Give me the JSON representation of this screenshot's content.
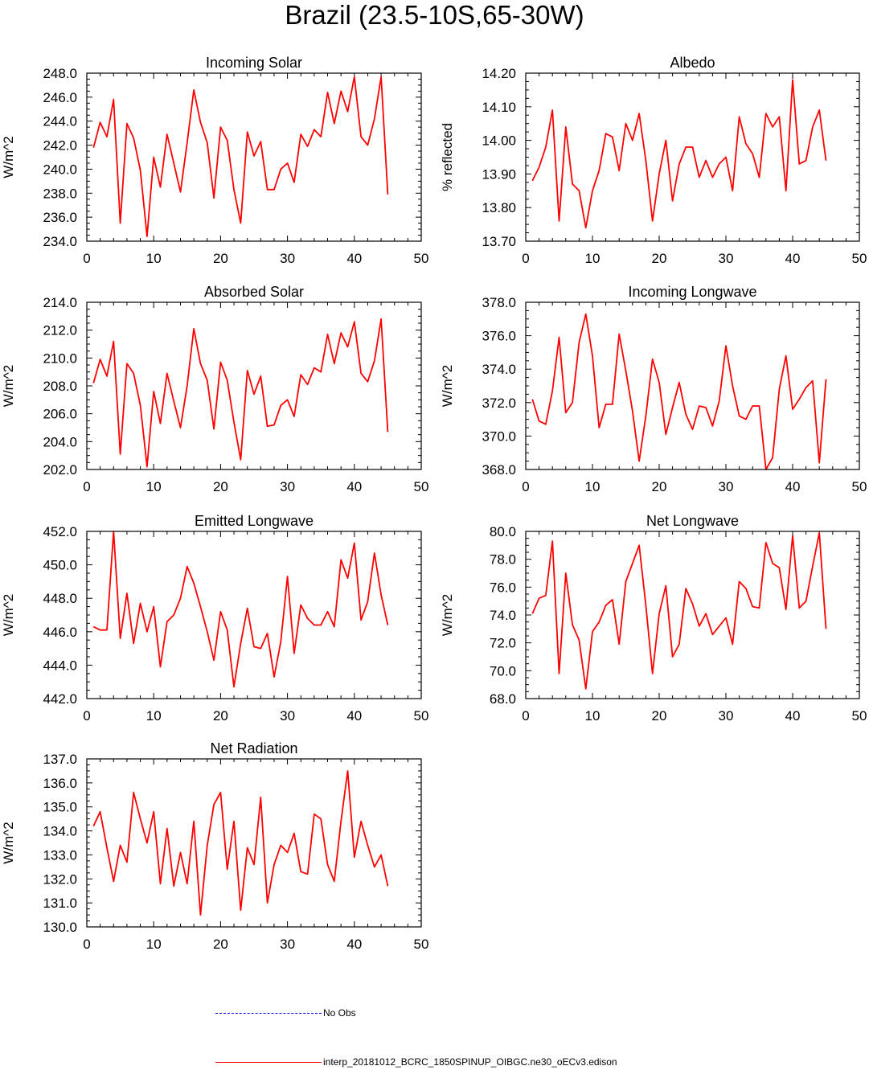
{
  "title": "Brazil (23.5-10S,65-30W)",
  "colors": {
    "model": "#ff0000",
    "obs": "#0000ff",
    "axis": "#000000"
  },
  "legend": {
    "obs_label": "No Obs",
    "model_label": "interp_20181012_BCRC_1850SPINUP_OIBGC.ne30_oECv3.edison"
  },
  "chart_data": [
    {
      "type": "line",
      "title": "Incoming Solar",
      "xlabel": "",
      "ylabel": "W/m^2",
      "xlim": [
        0,
        50
      ],
      "ylim": [
        234,
        248
      ],
      "xticks": [
        0,
        10,
        20,
        30,
        40,
        50
      ],
      "xtick_labels": [
        "0",
        "10",
        "20",
        "30",
        "40",
        "50"
      ],
      "yticks": [
        234,
        236,
        238,
        240,
        242,
        244,
        246,
        248
      ],
      "ytick_labels": [
        "234.0",
        "236.0",
        "238.0",
        "240.0",
        "242.0",
        "244.0",
        "246.0",
        "248.0"
      ],
      "series": [
        {
          "name": "interp_20181012_BCRC_1850SPINUP_OIBGC.ne30_oECv3.edison",
          "x": [
            1,
            2,
            3,
            4,
            5,
            6,
            7,
            8,
            9,
            10,
            11,
            12,
            13,
            14,
            15,
            16,
            17,
            18,
            19,
            20,
            21,
            22,
            23,
            24,
            25,
            26,
            27,
            28,
            29,
            30,
            31,
            32,
            33,
            34,
            35,
            36,
            37,
            38,
            39,
            40,
            41,
            42,
            43,
            44,
            45
          ],
          "values": [
            241.8,
            243.9,
            242.7,
            245.8,
            235.5,
            243.8,
            242.6,
            239.9,
            234.4,
            241.0,
            238.5,
            242.9,
            240.5,
            238.1,
            242.2,
            246.6,
            243.9,
            242.2,
            237.6,
            243.5,
            242.4,
            238.3,
            235.5,
            243.1,
            241.1,
            242.3,
            238.3,
            238.3,
            240.0,
            240.5,
            238.9,
            242.9,
            241.9,
            243.3,
            242.7,
            246.4,
            243.8,
            246.5,
            244.8,
            247.7,
            242.7,
            242.0,
            244.2,
            247.7,
            237.9
          ]
        }
      ]
    },
    {
      "type": "line",
      "title": "Albedo",
      "xlabel": "",
      "ylabel": "% reflected",
      "xlim": [
        0,
        50
      ],
      "ylim": [
        13.7,
        14.2
      ],
      "xticks": [
        0,
        10,
        20,
        30,
        40,
        50
      ],
      "xtick_labels": [
        "0",
        "10",
        "20",
        "30",
        "40",
        "50"
      ],
      "yticks": [
        13.7,
        13.8,
        13.9,
        14.0,
        14.1,
        14.2
      ],
      "ytick_labels": [
        "13.70",
        "13.80",
        "13.90",
        "14.00",
        "14.10",
        "14.20"
      ],
      "series": [
        {
          "name": "interp_20181012_BCRC_1850SPINUP_OIBGC.ne30_oECv3.edison",
          "x": [
            1,
            2,
            3,
            4,
            5,
            6,
            7,
            8,
            9,
            10,
            11,
            12,
            13,
            14,
            15,
            16,
            17,
            18,
            19,
            20,
            21,
            22,
            23,
            24,
            25,
            26,
            27,
            28,
            29,
            30,
            31,
            32,
            33,
            34,
            35,
            36,
            37,
            38,
            39,
            40,
            41,
            42,
            43,
            44,
            45
          ],
          "values": [
            13.88,
            13.92,
            13.98,
            14.09,
            13.76,
            14.04,
            13.87,
            13.85,
            13.74,
            13.85,
            13.91,
            14.02,
            14.01,
            13.91,
            14.05,
            14.0,
            14.08,
            13.94,
            13.76,
            13.9,
            14.0,
            13.82,
            13.93,
            13.98,
            13.98,
            13.89,
            13.94,
            13.89,
            13.93,
            13.95,
            13.85,
            14.07,
            13.99,
            13.96,
            13.89,
            14.08,
            14.04,
            14.07,
            13.85,
            14.18,
            13.93,
            13.94,
            14.04,
            14.09,
            13.94
          ]
        }
      ]
    },
    {
      "type": "line",
      "title": "Absorbed Solar",
      "xlabel": "",
      "ylabel": "W/m^2",
      "xlim": [
        0,
        50
      ],
      "ylim": [
        202,
        214
      ],
      "xticks": [
        0,
        10,
        20,
        30,
        40,
        50
      ],
      "xtick_labels": [
        "0",
        "10",
        "20",
        "30",
        "40",
        "50"
      ],
      "yticks": [
        202,
        204,
        206,
        208,
        210,
        212,
        214
      ],
      "ytick_labels": [
        "202.0",
        "204.0",
        "206.0",
        "208.0",
        "210.0",
        "212.0",
        "214.0"
      ],
      "series": [
        {
          "name": "interp_20181012_BCRC_1850SPINUP_OIBGC.ne30_oECv3.edison",
          "x": [
            1,
            2,
            3,
            4,
            5,
            6,
            7,
            8,
            9,
            10,
            11,
            12,
            13,
            14,
            15,
            16,
            17,
            18,
            19,
            20,
            21,
            22,
            23,
            24,
            25,
            26,
            27,
            28,
            29,
            30,
            31,
            32,
            33,
            34,
            35,
            36,
            37,
            38,
            39,
            40,
            41,
            42,
            43,
            44,
            45
          ],
          "values": [
            208.2,
            209.9,
            208.7,
            211.2,
            203.1,
            209.6,
            208.9,
            206.6,
            202.2,
            207.6,
            205.3,
            208.9,
            206.9,
            205.0,
            208.0,
            212.1,
            209.6,
            208.4,
            204.9,
            209.7,
            208.4,
            205.4,
            202.7,
            209.1,
            207.4,
            208.7,
            205.1,
            205.2,
            206.6,
            207.0,
            205.8,
            208.8,
            208.1,
            209.3,
            209.0,
            211.7,
            209.6,
            211.8,
            210.8,
            212.6,
            208.9,
            208.3,
            209.8,
            212.8,
            204.7
          ]
        }
      ]
    },
    {
      "type": "line",
      "title": "Incoming Longwave",
      "xlabel": "",
      "ylabel": "W/m^2",
      "xlim": [
        0,
        50
      ],
      "ylim": [
        368,
        378
      ],
      "xticks": [
        0,
        10,
        20,
        30,
        40,
        50
      ],
      "xtick_labels": [
        "0",
        "10",
        "20",
        "30",
        "40",
        "50"
      ],
      "yticks": [
        368,
        370,
        372,
        374,
        376,
        378
      ],
      "ytick_labels": [
        "368.0",
        "370.0",
        "372.0",
        "374.0",
        "376.0",
        "378.0"
      ],
      "series": [
        {
          "name": "interp_20181012_BCRC_1850SPINUP_OIBGC.ne30_oECv3.edison",
          "x": [
            1,
            2,
            3,
            4,
            5,
            6,
            7,
            8,
            9,
            10,
            11,
            12,
            13,
            14,
            15,
            16,
            17,
            18,
            19,
            20,
            21,
            22,
            23,
            24,
            25,
            26,
            27,
            28,
            29,
            30,
            31,
            32,
            33,
            34,
            35,
            36,
            37,
            38,
            39,
            40,
            41,
            42,
            43,
            44,
            45
          ],
          "values": [
            372.2,
            370.9,
            370.7,
            372.7,
            375.9,
            371.4,
            372.0,
            375.6,
            377.3,
            374.8,
            370.5,
            371.9,
            371.9,
            376.1,
            373.9,
            371.5,
            368.5,
            371.2,
            374.6,
            373.2,
            370.1,
            371.7,
            373.2,
            371.3,
            370.4,
            371.8,
            371.7,
            370.6,
            372.1,
            375.4,
            373.0,
            371.2,
            371.0,
            371.8,
            371.8,
            368.0,
            368.7,
            372.8,
            374.8,
            371.6,
            372.2,
            372.9,
            373.3,
            368.4,
            373.4
          ]
        }
      ]
    },
    {
      "type": "line",
      "title": "Emitted Longwave",
      "xlabel": "",
      "ylabel": "W/m^2",
      "xlim": [
        0,
        50
      ],
      "ylim": [
        442,
        452
      ],
      "xticks": [
        0,
        10,
        20,
        30,
        40,
        50
      ],
      "xtick_labels": [
        "0",
        "10",
        "20",
        "30",
        "40",
        "50"
      ],
      "yticks": [
        442,
        444,
        446,
        448,
        450,
        452
      ],
      "ytick_labels": [
        "442.0",
        "444.0",
        "446.0",
        "448.0",
        "450.0",
        "452.0"
      ],
      "series": [
        {
          "name": "interp_20181012_BCRC_1850SPINUP_OIBGC.ne30_oECv3.edison",
          "x": [
            1,
            2,
            3,
            4,
            5,
            6,
            7,
            8,
            9,
            10,
            11,
            12,
            13,
            14,
            15,
            16,
            17,
            18,
            19,
            20,
            21,
            22,
            23,
            24,
            25,
            26,
            27,
            28,
            29,
            30,
            31,
            32,
            33,
            34,
            35,
            36,
            37,
            38,
            39,
            40,
            41,
            42,
            43,
            44,
            45
          ],
          "values": [
            446.3,
            446.1,
            446.1,
            452.0,
            445.6,
            448.3,
            445.3,
            447.7,
            446.0,
            447.5,
            443.9,
            446.6,
            447.0,
            448.0,
            449.9,
            448.9,
            447.5,
            446.0,
            444.3,
            447.2,
            446.1,
            442.7,
            445.3,
            447.4,
            445.1,
            445.0,
            445.9,
            443.3,
            445.4,
            449.3,
            444.7,
            447.6,
            446.8,
            446.4,
            446.4,
            447.2,
            446.3,
            450.3,
            449.2,
            451.3,
            446.7,
            447.8,
            450.7,
            448.2,
            446.4
          ]
        }
      ]
    },
    {
      "type": "line",
      "title": "Net Longwave",
      "xlabel": "",
      "ylabel": "W/m^2",
      "xlim": [
        0,
        50
      ],
      "ylim": [
        68,
        80
      ],
      "xticks": [
        0,
        10,
        20,
        30,
        40,
        50
      ],
      "xtick_labels": [
        "0",
        "10",
        "20",
        "30",
        "40",
        "50"
      ],
      "yticks": [
        68,
        70,
        72,
        74,
        76,
        78,
        80
      ],
      "ytick_labels": [
        "68.0",
        "70.0",
        "72.0",
        "74.0",
        "76.0",
        "78.0",
        "80.0"
      ],
      "series": [
        {
          "name": "interp_20181012_BCRC_1850SPINUP_OIBGC.ne30_oECv3.edison",
          "x": [
            1,
            2,
            3,
            4,
            5,
            6,
            7,
            8,
            9,
            10,
            11,
            12,
            13,
            14,
            15,
            16,
            17,
            18,
            19,
            20,
            21,
            22,
            23,
            24,
            25,
            26,
            27,
            28,
            29,
            30,
            31,
            32,
            33,
            34,
            35,
            36,
            37,
            38,
            39,
            40,
            41,
            42,
            43,
            44,
            45
          ],
          "values": [
            74.1,
            75.2,
            75.4,
            79.3,
            69.8,
            77.0,
            73.3,
            72.2,
            68.7,
            72.8,
            73.5,
            74.7,
            75.1,
            71.9,
            76.4,
            77.7,
            79.0,
            74.7,
            69.8,
            74.1,
            76.1,
            71.0,
            71.9,
            75.9,
            74.8,
            73.2,
            74.1,
            72.6,
            73.2,
            73.8,
            71.9,
            76.4,
            75.9,
            74.6,
            74.5,
            79.2,
            77.7,
            77.4,
            74.4,
            79.7,
            74.5,
            75.0,
            77.5,
            79.9,
            73.0
          ]
        }
      ]
    },
    {
      "type": "line",
      "title": "Net Radiation",
      "xlabel": "",
      "ylabel": "W/m^2",
      "xlim": [
        0,
        50
      ],
      "ylim": [
        130,
        137
      ],
      "xticks": [
        0,
        10,
        20,
        30,
        40,
        50
      ],
      "xtick_labels": [
        "0",
        "10",
        "20",
        "30",
        "40",
        "50"
      ],
      "yticks": [
        130,
        131,
        132,
        133,
        134,
        135,
        136,
        137
      ],
      "ytick_labels": [
        "130.0",
        "131.0",
        "132.0",
        "133.0",
        "134.0",
        "135.0",
        "136.0",
        "137.0"
      ],
      "series": [
        {
          "name": "interp_20181012_BCRC_1850SPINUP_OIBGC.ne30_oECv3.edison",
          "x": [
            1,
            2,
            3,
            4,
            5,
            6,
            7,
            8,
            9,
            10,
            11,
            12,
            13,
            14,
            15,
            16,
            17,
            18,
            19,
            20,
            21,
            22,
            23,
            24,
            25,
            26,
            27,
            28,
            29,
            30,
            31,
            32,
            33,
            34,
            35,
            36,
            37,
            38,
            39,
            40,
            41,
            42,
            43,
            44,
            45
          ],
          "values": [
            134.2,
            134.8,
            133.3,
            131.9,
            133.4,
            132.7,
            135.6,
            134.5,
            133.5,
            134.8,
            131.8,
            134.1,
            131.7,
            133.1,
            131.8,
            134.4,
            130.5,
            133.4,
            135.1,
            135.6,
            132.4,
            134.4,
            130.7,
            133.3,
            132.6,
            135.4,
            131.0,
            132.6,
            133.4,
            133.1,
            133.9,
            132.3,
            132.2,
            134.7,
            134.5,
            132.6,
            131.9,
            134.4,
            136.5,
            132.9,
            134.4,
            133.4,
            132.5,
            133.0,
            131.7
          ]
        }
      ]
    }
  ]
}
